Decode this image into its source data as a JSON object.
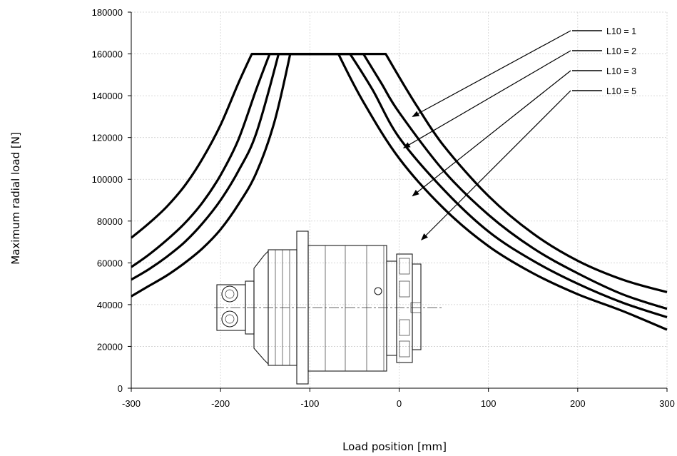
{
  "chart_data": {
    "type": "line",
    "title": "",
    "xlabel": "Load position [mm]",
    "ylabel": "Maximum radial load [N]",
    "xlim": [
      -300,
      300
    ],
    "ylim": [
      0,
      180000
    ],
    "x_ticks": [
      "-300",
      "-200",
      "-100",
      "0",
      "100",
      "200",
      "300"
    ],
    "y_ticks": [
      "0",
      "20000",
      "40000",
      "60000",
      "80000",
      "100000",
      "120000",
      "140000",
      "160000",
      "180000"
    ],
    "grid": true,
    "legend_position": "top-right",
    "series": [
      {
        "name": "L10 = 1",
        "x": [
          -300,
          -280,
          -260,
          -240,
          -220,
          -200,
          -180,
          -165,
          -15,
          0,
          20,
          50,
          100,
          150,
          200,
          250,
          300
        ],
        "y": [
          72000,
          79000,
          87000,
          97000,
          110000,
          126000,
          146000,
          160000,
          160000,
          149000,
          135000,
          116000,
          92000,
          74000,
          61000,
          52000,
          46000
        ]
      },
      {
        "name": "L10 = 2",
        "x": [
          -300,
          -280,
          -260,
          -240,
          -220,
          -200,
          -180,
          -160,
          -145,
          -40,
          -20,
          0,
          50,
          100,
          150,
          200,
          250,
          300
        ],
        "y": [
          58000,
          64000,
          71000,
          79000,
          89000,
          102000,
          119000,
          143000,
          160000,
          160000,
          146000,
          132000,
          104000,
          83000,
          67000,
          55000,
          45000,
          38000
        ]
      },
      {
        "name": "L10 = 3",
        "x": [
          -300,
          -280,
          -260,
          -240,
          -220,
          -200,
          -180,
          -160,
          -135,
          -55,
          -30,
          0,
          50,
          100,
          150,
          200,
          250,
          300
        ],
        "y": [
          52000,
          57000,
          63000,
          70000,
          79000,
          90000,
          104000,
          122000,
          160000,
          160000,
          143000,
          120000,
          95000,
          75000,
          61000,
          50000,
          41000,
          34000
        ]
      },
      {
        "name": "L10 = 5",
        "x": [
          -300,
          -280,
          -260,
          -240,
          -220,
          -200,
          -180,
          -160,
          -140,
          -122,
          -68,
          -40,
          0,
          50,
          100,
          150,
          200,
          250,
          300
        ],
        "y": [
          44000,
          49000,
          54000,
          60000,
          67000,
          76000,
          88000,
          103000,
          127000,
          160000,
          160000,
          137000,
          110000,
          86000,
          68000,
          55000,
          45000,
          37000,
          28000
        ]
      }
    ],
    "legend": [
      {
        "label": "L10 = 1",
        "target": [
          15,
          130000
        ]
      },
      {
        "label": "L10 = 2",
        "target": [
          5,
          115000
        ]
      },
      {
        "label": "L10 = 3",
        "target": [
          15,
          92000
        ]
      },
      {
        "label": "L10 = 5",
        "target": [
          25,
          71000
        ]
      }
    ]
  },
  "drawing": {
    "name": "gearbox-drawing",
    "ink_color": "#1a1a1a"
  }
}
